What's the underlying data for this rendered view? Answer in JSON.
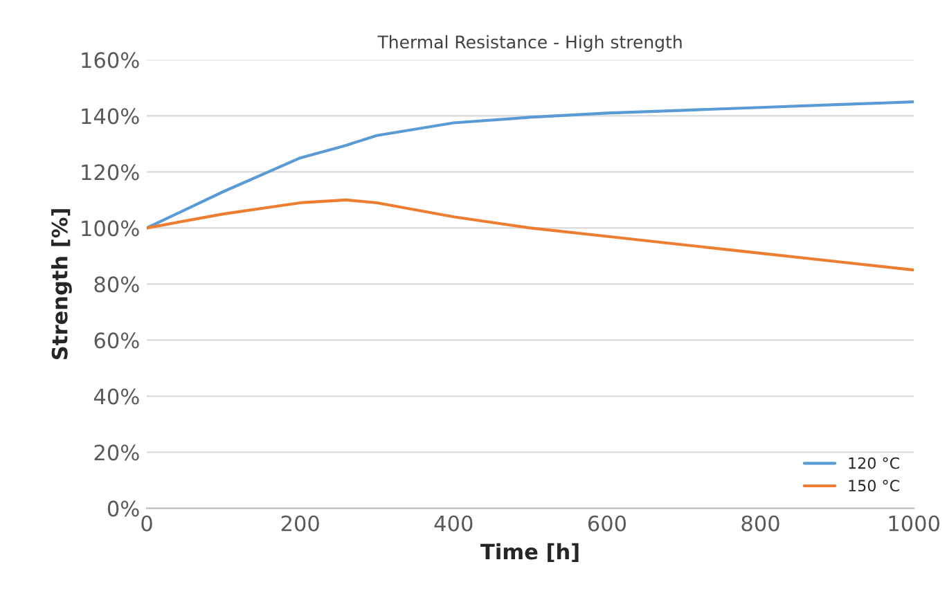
{
  "chart_data": {
    "type": "line",
    "title": "Thermal Resistance - High strength",
    "xlabel": "Time [h]",
    "ylabel": "Strength [%]",
    "xlim": [
      0,
      1000
    ],
    "xticks": [
      0,
      200,
      400,
      600,
      800,
      1000
    ],
    "ylim": [
      0,
      160
    ],
    "yticks": [
      {
        "value": 0,
        "label": "0%"
      },
      {
        "value": 20,
        "label": "20%"
      },
      {
        "value": 40,
        "label": "40%"
      },
      {
        "value": 60,
        "label": "60%"
      },
      {
        "value": 80,
        "label": "80%"
      },
      {
        "value": 100,
        "label": "100%"
      },
      {
        "value": 120,
        "label": "120%"
      },
      {
        "value": 140,
        "label": "140%"
      },
      {
        "value": 160,
        "label": "160%"
      }
    ],
    "grid": "y",
    "legend": "bottom right",
    "marker": "none",
    "line_style": "solid",
    "x": [
      0,
      100,
      200,
      260,
      300,
      400,
      500,
      600,
      700,
      800,
      900,
      1000
    ],
    "series": [
      {
        "name": "120 °C",
        "color": "#5b9bd5",
        "values": [
          100,
          113,
          125,
          129.5,
          133,
          137.5,
          139.5,
          141,
          142,
          143,
          144,
          145
        ]
      },
      {
        "name": "150 °C",
        "color": "#ed7d31",
        "values": [
          100,
          105,
          109,
          110,
          109,
          104,
          100,
          97,
          94,
          91,
          88,
          85
        ]
      }
    ]
  }
}
